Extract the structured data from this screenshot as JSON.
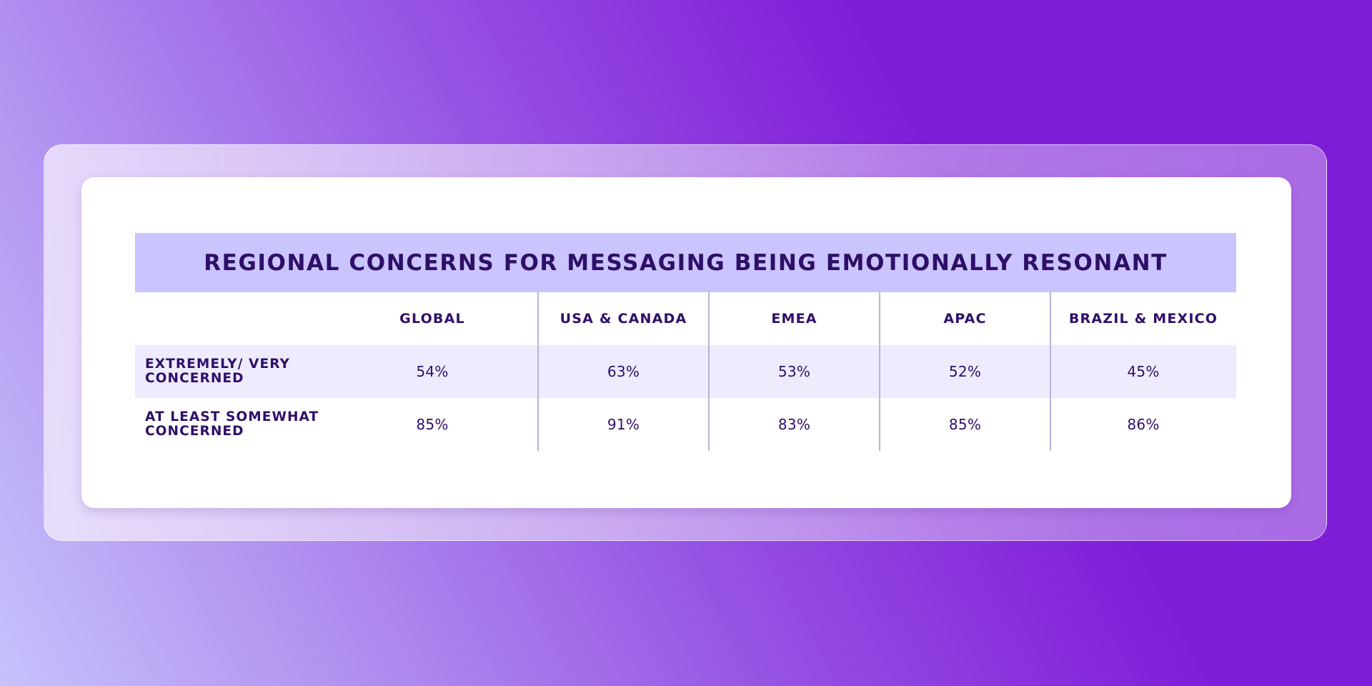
{
  "chart_data": {
    "type": "table",
    "title": "REGIONAL CONCERNS FOR MESSAGING BEING EMOTIONALLY RESONANT",
    "columns": [
      "GLOBAL",
      "USA & CANADA",
      "EMEA",
      "APAC",
      "BRAZIL & MEXICO"
    ],
    "rows": [
      {
        "label": "EXTREMELY/ VERY\nCONCERNED",
        "values": [
          "54%",
          "63%",
          "53%",
          "52%",
          "45%"
        ]
      },
      {
        "label": "AT LEAST SOMEWHAT\nCONCERNED",
        "values": [
          "85%",
          "91%",
          "83%",
          "85%",
          "86%"
        ]
      }
    ]
  },
  "colors": {
    "title_band": "#cac4ff",
    "text": "#2e0f68",
    "shaded_row": "#eeebff",
    "divider": "#b9b3d6",
    "card": "#ffffff",
    "background_start": "#c6c2fb",
    "background_end": "#7f1cd8"
  }
}
